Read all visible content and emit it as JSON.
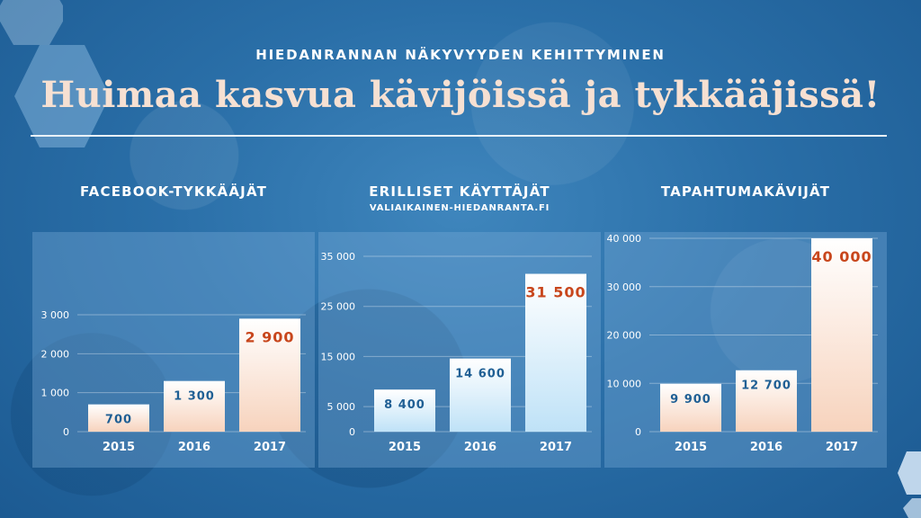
{
  "header": {
    "subtitle": "HIEDANRANNAN NÄKYVYYDEN KEHITTYMINEN",
    "title": "Huimaa kasvua kävijöissä ja tykkääjissä!"
  },
  "colors": {
    "accent_orange": "#c8461c",
    "value_blue": "#1f5f94",
    "bar_peach_top": "#ffffff",
    "bar_peach_bottom": "#f7d3bd",
    "bar_blue_top": "#ffffff",
    "bar_blue_bottom": "#bfe2f7"
  },
  "chart_data": [
    {
      "type": "bar",
      "title": "FACEBOOK-TYKKÄÄJÄT",
      "subtitle": "",
      "categories": [
        "2015",
        "2016",
        "2017"
      ],
      "values": [
        700,
        1300,
        2900
      ],
      "value_labels": [
        "700",
        "1 300",
        "2 900"
      ],
      "highlight_index": 2,
      "yticks": [
        0,
        1000,
        2000,
        3000
      ],
      "ytick_labels": [
        "0",
        "1 000",
        "2 000",
        "3 000"
      ],
      "ylim": [
        0,
        3000
      ],
      "bar_style": "peach",
      "grid": true
    },
    {
      "type": "bar",
      "title": "ERILLISET KÄYTTÄJÄT",
      "subtitle": "VALIAIKAINEN-HIEDANRANTA.FI",
      "categories": [
        "2015",
        "2016",
        "2017"
      ],
      "values": [
        8400,
        14600,
        31500
      ],
      "value_labels": [
        "8 400",
        "14 600",
        "31 500"
      ],
      "highlight_index": 2,
      "yticks": [
        0,
        5000,
        15000,
        25000,
        35000
      ],
      "ytick_labels": [
        "0",
        "5 000",
        "15 000",
        "25 000",
        "35 000"
      ],
      "ylim": [
        0,
        35000
      ],
      "bar_style": "blue",
      "grid": true
    },
    {
      "type": "bar",
      "title": "TAPAHTUMAKÄVIJÄT",
      "subtitle": "",
      "categories": [
        "2015",
        "2016",
        "2017"
      ],
      "values": [
        9900,
        12700,
        40000
      ],
      "value_labels": [
        "9 900",
        "12 700",
        "40 000"
      ],
      "highlight_index": 2,
      "yticks": [
        0,
        10000,
        20000,
        30000,
        40000
      ],
      "ytick_labels": [
        "0",
        "10 000",
        "20 000",
        "30 000",
        "40 000"
      ],
      "ylim": [
        0,
        40000
      ],
      "bar_style": "peach",
      "grid": true
    }
  ]
}
